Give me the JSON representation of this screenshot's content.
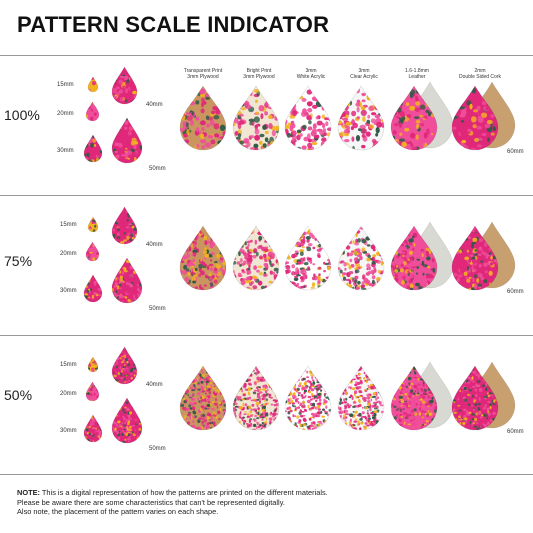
{
  "title": "PATTERN SCALE INDICATOR",
  "materials": [
    "Transparent Print\n3mm Plywood",
    "Bright Print\n3mm Plywood",
    "3mm\nWhite Acrylic",
    "3mm\nClear Acrylic",
    "1.6-1.8mm\nLeather",
    "2mm\nDouble Sided Cork"
  ],
  "sizes": [
    "15mm",
    "20mm",
    "30mm",
    "40mm",
    "50mm",
    "60mm"
  ],
  "scales": [
    "100%",
    "75%",
    "50%"
  ],
  "note": {
    "label": "NOTE:",
    "line1": "This is a digital representation of how the patterns are printed on the different materials.",
    "line2": "Please be aware there are some characteristics that can't be represented digitally.",
    "line3": "Also note, the placement of the pattern varies on each shape."
  },
  "colors": {
    "magenta": "#e0287a",
    "pink": "#f04d9a",
    "yellow": "#f3b21d",
    "green": "#2f5a45",
    "wood": "#c99660",
    "cork": "#c8a070",
    "leather": "#d9d9d4",
    "acrylic": "#f6f6f6"
  }
}
